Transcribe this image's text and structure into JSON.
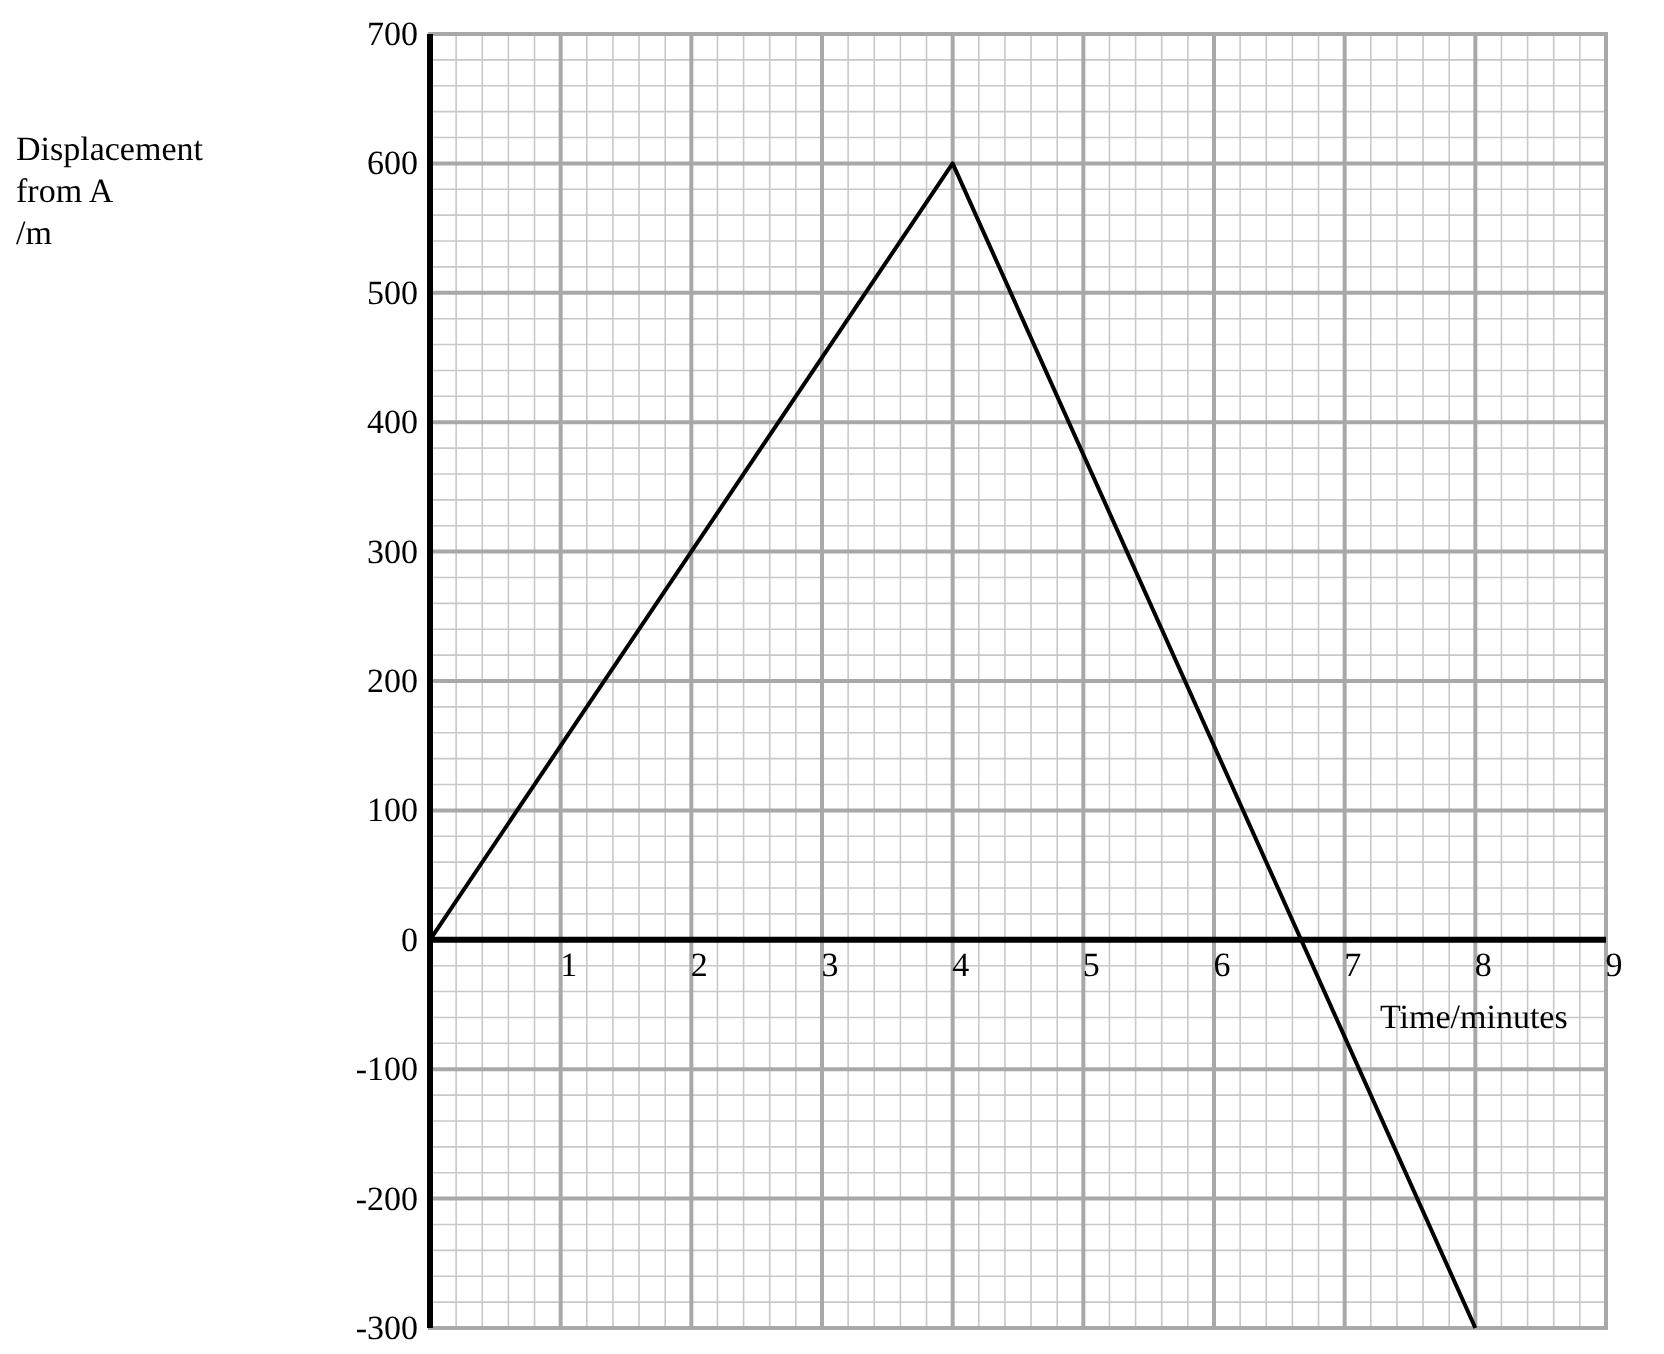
{
  "chart_data": {
    "type": "line",
    "xlabel": "Time/minutes",
    "ylabel": "Displacement from A /m",
    "x": [
      0,
      4,
      8
    ],
    "values": [
      0,
      600,
      -300
    ],
    "color": "#000000",
    "xlim": [
      0,
      9
    ],
    "xticks": [
      1,
      2,
      3,
      4,
      5,
      6,
      7,
      8,
      9
    ],
    "ylim": [
      -300,
      700
    ],
    "yticks": [
      -300,
      -200,
      -100,
      0,
      100,
      200,
      300,
      400,
      500,
      600,
      700
    ],
    "grid": true,
    "marker": "none",
    "line_style": "solid"
  }
}
